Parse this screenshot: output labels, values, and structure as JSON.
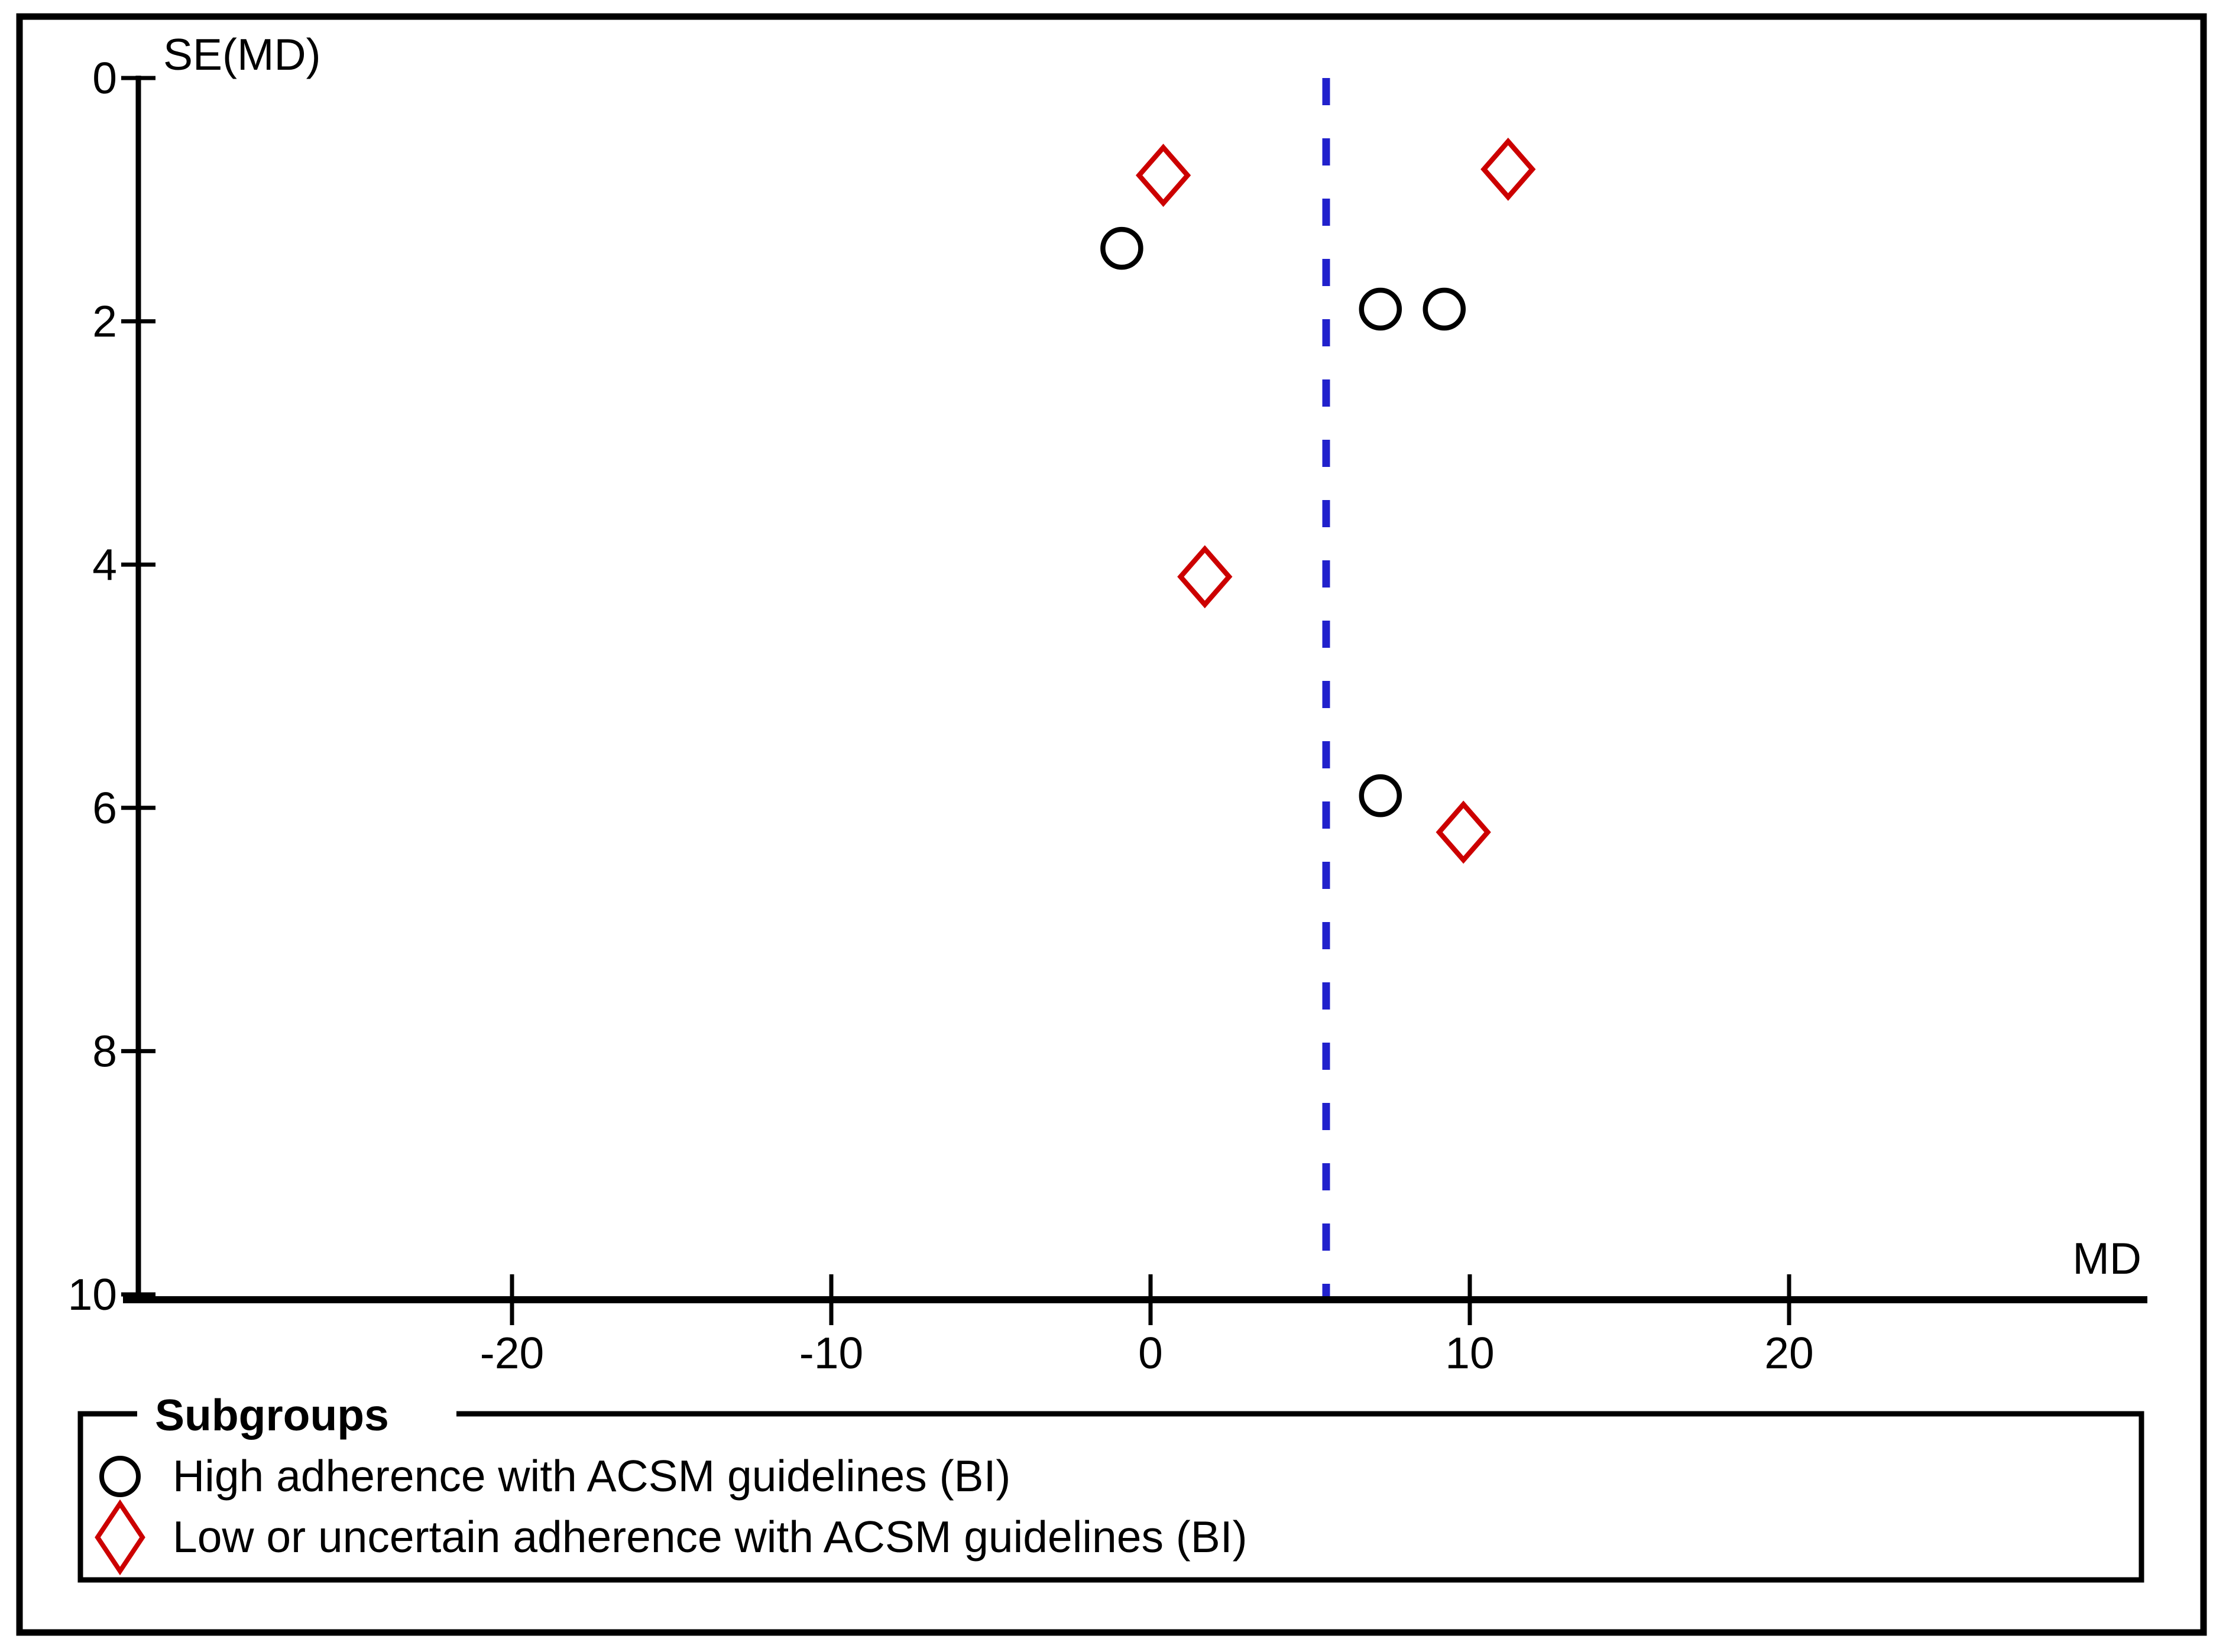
{
  "figure": {
    "y_axis_title": "SE(MD)",
    "x_axis_title": "MD"
  },
  "legend": {
    "title": "Subgroups",
    "items": [
      {
        "label": "High adherence with ACSM guidelines (BI)",
        "marker": "circle",
        "color": "#000000"
      },
      {
        "label": "Low or uncertain adherence with ACSM guidelines (BI)",
        "marker": "diamond",
        "color": "#cc0000"
      }
    ]
  },
  "chart_data": {
    "type": "scatter",
    "subtype": "funnel-plot",
    "title": "",
    "xlabel": "MD",
    "ylabel": "SE(MD)",
    "x_ticks": [
      -20,
      -10,
      0,
      10,
      20
    ],
    "y_ticks": [
      0,
      2,
      4,
      6,
      8,
      10
    ],
    "xlim": [
      -32,
      31
    ],
    "ylim": [
      0,
      10
    ],
    "y_axis_inverted": true,
    "grid": false,
    "pooled_effect_line": {
      "md": 5.5,
      "style": "dashed",
      "color": "#2121cc",
      "orientation": "vertical"
    },
    "series": [
      {
        "name": "High adherence with ACSM guidelines (BI)",
        "marker": "circle",
        "color": "#000000",
        "points": [
          {
            "md": -0.9,
            "se": 1.4
          },
          {
            "md": 7.2,
            "se": 1.9
          },
          {
            "md": 9.2,
            "se": 1.9
          },
          {
            "md": 7.2,
            "se": 5.9
          }
        ]
      },
      {
        "name": "Low or uncertain adherence with ACSM guidelines (BI)",
        "marker": "diamond",
        "color": "#cc0000",
        "points": [
          {
            "md": 0.4,
            "se": 0.8
          },
          {
            "md": 11.2,
            "se": 0.75
          },
          {
            "md": 1.7,
            "se": 4.1
          },
          {
            "md": 9.8,
            "se": 6.2
          }
        ]
      }
    ],
    "legend_position": "bottom-left"
  }
}
